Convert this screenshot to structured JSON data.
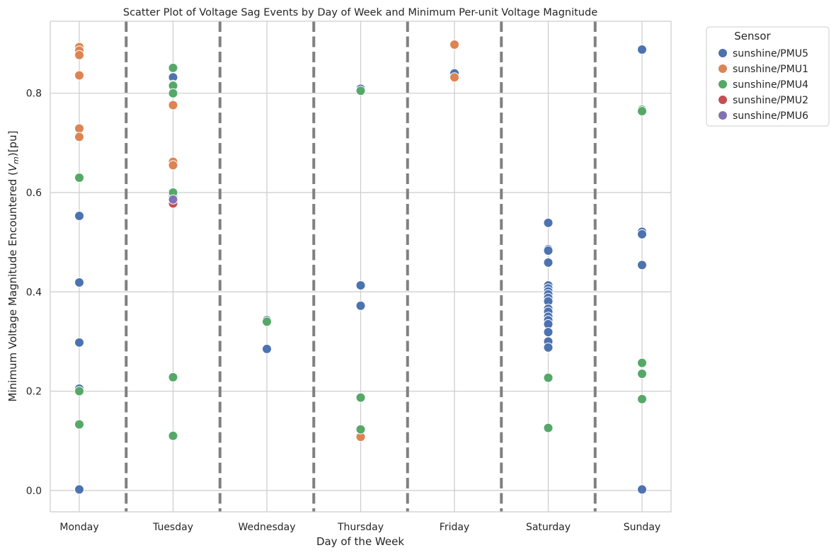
{
  "chart_data": {
    "type": "scatter",
    "title": "Scatter Plot of Voltage Sag Events by Day of Week and Minimum Per-unit Voltage Magnitude",
    "xlabel": "Day of the Week",
    "ylabel_prefix": "Minimum Voltage Magnitude Encountered (",
    "ylabel_var": "V",
    "ylabel_sub": "m",
    "ylabel_suffix": ")[pu]",
    "categories": [
      "Monday",
      "Tuesday",
      "Wednesday",
      "Thursday",
      "Friday",
      "Saturday",
      "Sunday"
    ],
    "yticks": [
      "0.0",
      "0.2",
      "0.4",
      "0.6",
      "0.8"
    ],
    "ylim": [
      -0.043,
      0.945
    ],
    "grid": true,
    "separators": "dashed vertical lines between days",
    "legend": {
      "title": "Sensor",
      "placement": "outside-top-right"
    },
    "series": [
      {
        "name": "sunshine/PMU5",
        "color": "#4c72b0",
        "points": [
          [
            "Monday",
            0.553
          ],
          [
            "Monday",
            0.419
          ],
          [
            "Monday",
            0.298
          ],
          [
            "Monday",
            0.205
          ],
          [
            "Monday",
            0.002
          ],
          [
            "Tuesday",
            0.832
          ],
          [
            "Tuesday",
            0.592
          ],
          [
            "Wednesday",
            0.343
          ],
          [
            "Wednesday",
            0.285
          ],
          [
            "Thursday",
            0.809
          ],
          [
            "Thursday",
            0.413
          ],
          [
            "Thursday",
            0.372
          ],
          [
            "Friday",
            0.84
          ],
          [
            "Saturday",
            0.539
          ],
          [
            "Saturday",
            0.486
          ],
          [
            "Saturday",
            0.483
          ],
          [
            "Saturday",
            0.459
          ],
          [
            "Saturday",
            0.413
          ],
          [
            "Saturday",
            0.407
          ],
          [
            "Saturday",
            0.401
          ],
          [
            "Saturday",
            0.395
          ],
          [
            "Saturday",
            0.388
          ],
          [
            "Saturday",
            0.381
          ],
          [
            "Saturday",
            0.366
          ],
          [
            "Saturday",
            0.36
          ],
          [
            "Saturday",
            0.35
          ],
          [
            "Saturday",
            0.343
          ],
          [
            "Saturday",
            0.335
          ],
          [
            "Saturday",
            0.319
          ],
          [
            "Saturday",
            0.3
          ],
          [
            "Saturday",
            0.288
          ],
          [
            "Sunday",
            0.888
          ],
          [
            "Sunday",
            0.521
          ],
          [
            "Sunday",
            0.516
          ],
          [
            "Sunday",
            0.454
          ],
          [
            "Sunday",
            0.002
          ]
        ]
      },
      {
        "name": "sunshine/PMU1",
        "color": "#dd8452",
        "points": [
          [
            "Monday",
            0.893
          ],
          [
            "Monday",
            0.886
          ],
          [
            "Monday",
            0.877
          ],
          [
            "Monday",
            0.836
          ],
          [
            "Monday",
            0.729
          ],
          [
            "Monday",
            0.712
          ],
          [
            "Tuesday",
            0.776
          ],
          [
            "Tuesday",
            0.662
          ],
          [
            "Tuesday",
            0.655
          ],
          [
            "Thursday",
            0.108
          ],
          [
            "Friday",
            0.898
          ],
          [
            "Friday",
            0.832
          ]
        ]
      },
      {
        "name": "sunshine/PMU4",
        "color": "#55a868",
        "points": [
          [
            "Monday",
            0.63
          ],
          [
            "Monday",
            0.2
          ],
          [
            "Monday",
            0.133
          ],
          [
            "Tuesday",
            0.851
          ],
          [
            "Tuesday",
            0.817
          ],
          [
            "Tuesday",
            0.815
          ],
          [
            "Tuesday",
            0.8
          ],
          [
            "Tuesday",
            0.6
          ],
          [
            "Tuesday",
            0.228
          ],
          [
            "Tuesday",
            0.11
          ],
          [
            "Wednesday",
            0.34
          ],
          [
            "Thursday",
            0.805
          ],
          [
            "Thursday",
            0.187
          ],
          [
            "Thursday",
            0.123
          ],
          [
            "Saturday",
            0.227
          ],
          [
            "Saturday",
            0.126
          ],
          [
            "Sunday",
            0.767
          ],
          [
            "Sunday",
            0.764
          ],
          [
            "Sunday",
            0.257
          ],
          [
            "Sunday",
            0.235
          ],
          [
            "Sunday",
            0.184
          ]
        ]
      },
      {
        "name": "sunshine/PMU2",
        "color": "#c44e52",
        "points": [
          [
            "Tuesday",
            0.578
          ]
        ]
      },
      {
        "name": "sunshine/PMU6",
        "color": "#8172b3",
        "points": [
          [
            "Tuesday",
            0.586
          ]
        ]
      }
    ]
  }
}
